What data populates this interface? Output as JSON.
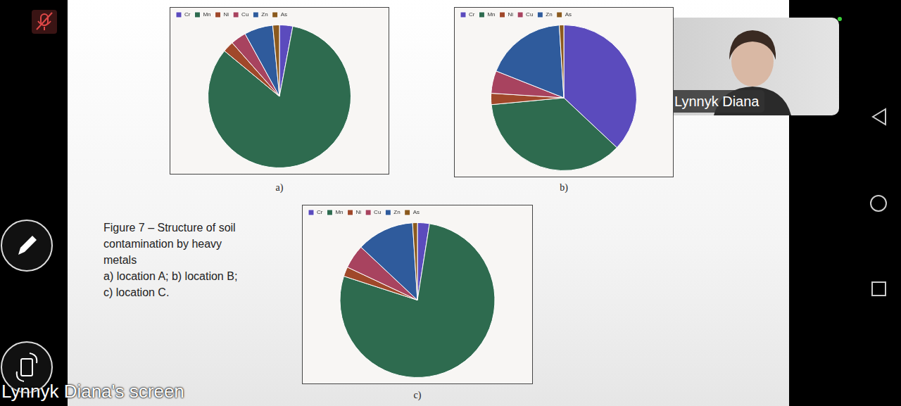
{
  "screen": {
    "presenter": "Lynnyk Diana's screen",
    "video_tile_name": "Lynnyk Diana"
  },
  "figure_caption": [
    "Figure 7 – Structure of soil",
    "contamination by heavy",
    "metals",
    "a) location A; b) location B;",
    "c) location C."
  ],
  "chart_data": [
    {
      "type": "pie",
      "caption": "a)",
      "categories": [
        "Cr",
        "Mn",
        "Ni",
        "Cu",
        "Zn",
        "As"
      ],
      "values": [
        3,
        83,
        2.5,
        3.5,
        6.5,
        1.5
      ],
      "colors": [
        "#5b4bbd",
        "#2e6b4f",
        "#a0482a",
        "#a8435f",
        "#2f5b9c",
        "#8b5a1e"
      ],
      "legend": "top-left"
    },
    {
      "type": "pie",
      "caption": "b)",
      "categories": [
        "Cr",
        "Mn",
        "Ni",
        "Cu",
        "Zn",
        "As"
      ],
      "values": [
        37,
        36.5,
        2.5,
        5,
        18,
        1
      ],
      "colors": [
        "#5b4bbd",
        "#2e6b4f",
        "#a0482a",
        "#a8435f",
        "#2f5b9c",
        "#8b5a1e"
      ],
      "legend": "top-left"
    },
    {
      "type": "pie",
      "caption": "c)",
      "categories": [
        "Cr",
        "Mn",
        "Ni",
        "Cu",
        "Zn",
        "As"
      ],
      "values": [
        2.5,
        77.5,
        2,
        5,
        12,
        1
      ],
      "colors": [
        "#5b4bbd",
        "#2e6b4f",
        "#a0482a",
        "#a8435f",
        "#2f5b9c",
        "#8b5a1e"
      ],
      "legend": "top-left"
    }
  ]
}
